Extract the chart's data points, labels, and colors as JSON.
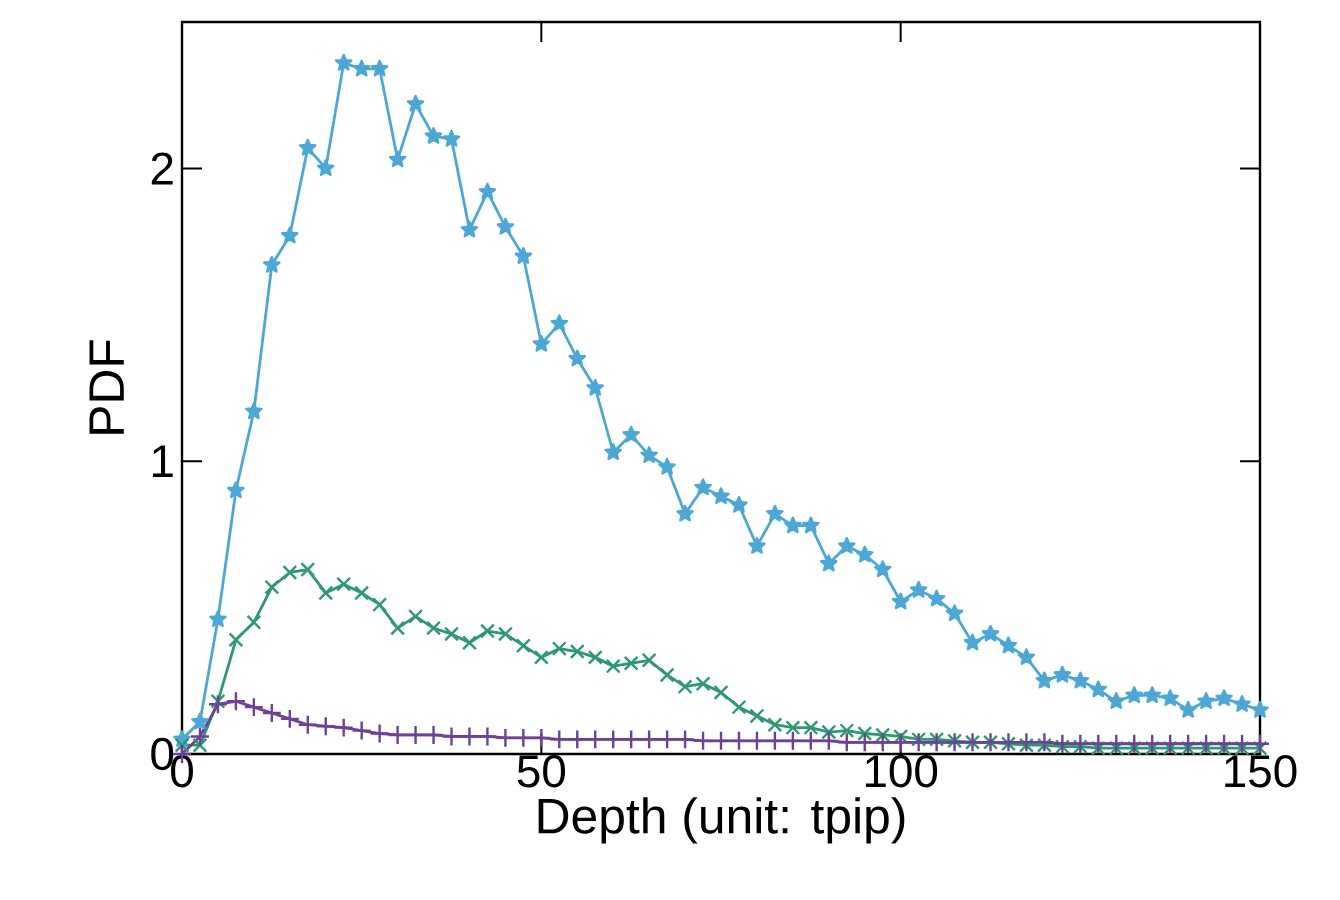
{
  "chart_data": {
    "type": "line",
    "xlabel": "Depth (unit: tpip)",
    "ylabel": "PDF",
    "xlim": [
      0,
      150
    ],
    "ylim": [
      0,
      2.5
    ],
    "xticks": [
      0,
      50,
      100,
      150
    ],
    "yticks": [
      0,
      1,
      2
    ],
    "grid": false,
    "x": [
      0,
      2.5,
      5,
      7.5,
      10,
      12.5,
      15,
      17.5,
      20,
      22.5,
      25,
      27.5,
      30,
      32.5,
      35,
      37.5,
      40,
      42.5,
      45,
      47.5,
      50,
      52.5,
      55,
      57.5,
      60,
      62.5,
      65,
      67.5,
      70,
      72.5,
      75,
      77.5,
      80,
      82.5,
      85,
      87.5,
      90,
      92.5,
      95,
      97.5,
      100,
      102.5,
      105,
      107.5,
      110,
      112.5,
      115,
      117.5,
      120,
      122.5,
      125,
      127.5,
      130,
      132.5,
      135,
      137.5,
      140,
      142.5,
      145,
      147.5,
      150
    ],
    "series": [
      {
        "color": "#4aa8d8",
        "marker": "star",
        "values": [
          0.05,
          0.11,
          0.46,
          0.9,
          1.17,
          1.67,
          1.77,
          2.07,
          2.0,
          2.36,
          2.34,
          2.34,
          2.03,
          2.22,
          2.11,
          2.1,
          1.79,
          1.92,
          1.8,
          1.7,
          1.4,
          1.47,
          1.35,
          1.25,
          1.03,
          1.09,
          1.02,
          0.98,
          0.82,
          0.91,
          0.88,
          0.85,
          0.71,
          0.82,
          0.78,
          0.78,
          0.65,
          0.71,
          0.68,
          0.63,
          0.52,
          0.56,
          0.53,
          0.48,
          0.38,
          0.41,
          0.37,
          0.33,
          0.25,
          0.27,
          0.25,
          0.22,
          0.18,
          0.2,
          0.2,
          0.19,
          0.15,
          0.18,
          0.19,
          0.17,
          0.15
        ]
      },
      {
        "color": "#2a9a70",
        "marker": "cross",
        "values": [
          0.03,
          0.03,
          0.18,
          0.39,
          0.45,
          0.57,
          0.62,
          0.63,
          0.55,
          0.58,
          0.55,
          0.51,
          0.43,
          0.47,
          0.43,
          0.41,
          0.38,
          0.42,
          0.41,
          0.37,
          0.33,
          0.36,
          0.35,
          0.33,
          0.3,
          0.31,
          0.32,
          0.27,
          0.23,
          0.24,
          0.21,
          0.16,
          0.13,
          0.1,
          0.09,
          0.09,
          0.075,
          0.08,
          0.07,
          0.065,
          0.06,
          0.05,
          0.05,
          0.045,
          0.04,
          0.04,
          0.035,
          0.03,
          0.03,
          0.025,
          0.025,
          0.02,
          0.02,
          0.02,
          0.02,
          0.02,
          0.02,
          0.02,
          0.02,
          0.02,
          0.02
        ]
      },
      {
        "color": "#6f3f9c",
        "marker": "plus",
        "values": [
          0.0,
          0.06,
          0.17,
          0.18,
          0.16,
          0.14,
          0.12,
          0.1,
          0.095,
          0.09,
          0.08,
          0.07,
          0.065,
          0.065,
          0.065,
          0.06,
          0.06,
          0.06,
          0.055,
          0.055,
          0.055,
          0.05,
          0.05,
          0.05,
          0.05,
          0.05,
          0.05,
          0.05,
          0.05,
          0.045,
          0.045,
          0.045,
          0.045,
          0.045,
          0.045,
          0.045,
          0.045,
          0.04,
          0.04,
          0.04,
          0.04,
          0.04,
          0.04,
          0.04,
          0.04,
          0.04,
          0.04,
          0.04,
          0.04,
          0.035,
          0.035,
          0.035,
          0.035,
          0.035,
          0.035,
          0.035,
          0.035,
          0.035,
          0.035,
          0.035,
          0.035
        ]
      }
    ]
  }
}
